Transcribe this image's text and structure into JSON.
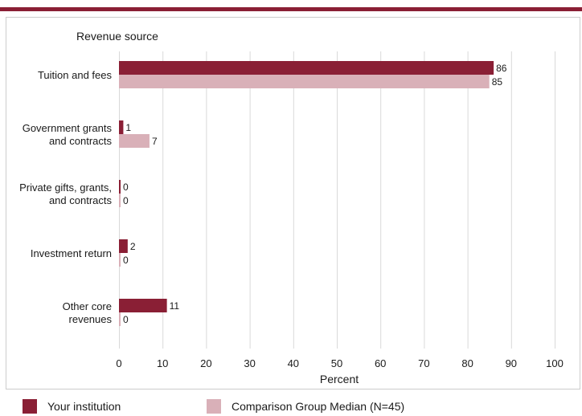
{
  "chart_data": {
    "type": "bar",
    "orientation": "horizontal",
    "title": "",
    "ylabel": "Revenue source",
    "xlabel": "Percent",
    "categories": [
      [
        "Tuition and fees"
      ],
      [
        "Government grants",
        "and contracts"
      ],
      [
        "Private gifts, grants,",
        "and contracts"
      ],
      [
        "Investment return"
      ],
      [
        "Other core",
        "revenues"
      ]
    ],
    "series": [
      {
        "name": "Your institution",
        "color": "#8a1f35",
        "values": [
          86,
          1,
          0,
          2,
          11
        ]
      },
      {
        "name": "Comparison Group Median (N=45)",
        "color": "#d9b0b8",
        "values": [
          85,
          7,
          0,
          0,
          0
        ]
      }
    ],
    "xlim": [
      0,
      100
    ],
    "ticks": [
      0,
      10,
      20,
      30,
      40,
      50,
      60,
      70,
      80,
      90,
      100
    ],
    "grid": true,
    "legend_position": "bottom"
  }
}
